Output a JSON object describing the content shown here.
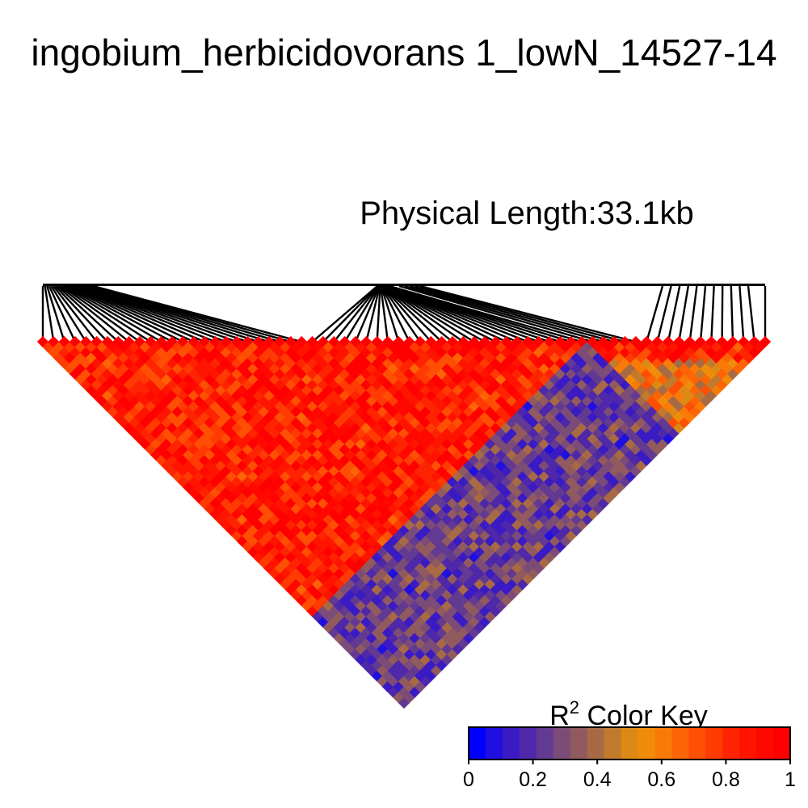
{
  "title": "ingobium_herbicidovorans 1_lowN_14527-14",
  "subtitle": "Physical Length:33.1kb",
  "chart_data": {
    "type": "heatmap",
    "title": "ingobium_herbicidovorans 1_lowN_14527-14",
    "subtitle": "Physical Length:33.1kb",
    "description_of_layout": "",
    "n_snps": 68,
    "snp_physical_positions_relative": [],
    "color_key": {
      "title_main": "R",
      "title_sup": "2",
      "title_rest": " Color Key",
      "range": [
        0,
        1
      ],
      "ticks": [
        "0",
        "0.2",
        "0.4",
        "0.6",
        "0.8",
        "1"
      ],
      "colors": [
        "#0000ff",
        "#1f10df",
        "#3a1bc3",
        "#4e28a9",
        "#623a92",
        "#7c4c78",
        "#905a5f",
        "#a86a45",
        "#c27a2c",
        "#dc8916",
        "#f08c0a",
        "#fa7a08",
        "#fd6406",
        "#fe4f04",
        "#ff3a02",
        "#ff2401",
        "#ff1400",
        "#ff0800",
        "#ff0000"
      ]
    },
    "ld_pattern": {
      "high_block_end_snp": 51,
      "low_region_start_snp": 51,
      "typical_high_r2": 0.85,
      "typical_low_r2": 0.25
    }
  }
}
